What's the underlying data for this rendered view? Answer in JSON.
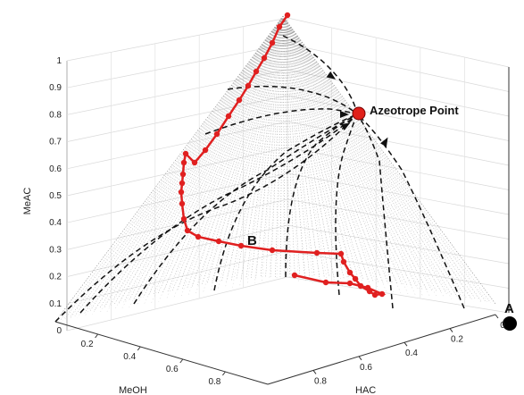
{
  "chart_data": {
    "type": "line",
    "xlabel": "MeOH",
    "ylabel": "HAC",
    "zlabel": "MeAC",
    "z_ticks": [
      "0",
      "0.1",
      "0.2",
      "0.3",
      "0.4",
      "0.5",
      "0.6",
      "0.7",
      "0.8",
      "0.9",
      "1"
    ],
    "meoh_ticks": [
      "0.2",
      "0.4",
      "0.6",
      "0.8"
    ],
    "hac_ticks": [
      "0.8",
      "0.6",
      "0.4",
      "0.2",
      "0"
    ],
    "annotations": {
      "azeotrope": "Azeotrope Point",
      "label_a": "A",
      "label_b": "B"
    },
    "azeotrope": {
      "meoh": 0.0,
      "hac": 0.18,
      "meac": 0.82
    },
    "point_a": {
      "meoh": 0.0,
      "hac": 0.0,
      "meac": 0.0
    },
    "point_b_path": {
      "name": "",
      "color": "#e02020",
      "points": [
        {
          "meoh": 0.12,
          "hac": 0.8,
          "meac": 0.08
        },
        {
          "meoh": 0.14,
          "hac": 0.7,
          "meac": 0.08
        },
        {
          "meoh": 0.18,
          "hac": 0.62,
          "meac": 0.08
        },
        {
          "meoh": 0.25,
          "hac": 0.55,
          "meac": 0.1
        },
        {
          "meoh": 0.28,
          "hac": 0.53,
          "meac": 0.12
        },
        {
          "meoh": 0.33,
          "hac": 0.42,
          "meac": 0.18
        },
        {
          "meoh": 0.36,
          "hac": 0.36,
          "meac": 0.22
        },
        {
          "meoh": 0.45,
          "hac": 0.22,
          "meac": 0.28
        },
        {
          "meoh": 0.55,
          "hac": 0.12,
          "meac": 0.3
        },
        {
          "meoh": 0.62,
          "hac": 0.08,
          "meac": 0.32
        },
        {
          "meoh": 0.66,
          "hac": 0.04,
          "meac": 0.38
        },
        {
          "meoh": 0.68,
          "hac": 0.02,
          "meac": 0.45
        },
        {
          "meoh": 0.69,
          "hac": 0.01,
          "meac": 0.55
        },
        {
          "meoh": 0.7,
          "hac": 0.0,
          "meac": 0.66
        },
        {
          "meoh": 0.35,
          "hac": 0.0,
          "meac": 0.85
        },
        {
          "meoh": 0.1,
          "hac": 0.0,
          "meac": 0.98
        }
      ]
    },
    "residue_curves": {
      "color": "#111111",
      "style": "dashed",
      "count": 9
    },
    "grid": true
  }
}
